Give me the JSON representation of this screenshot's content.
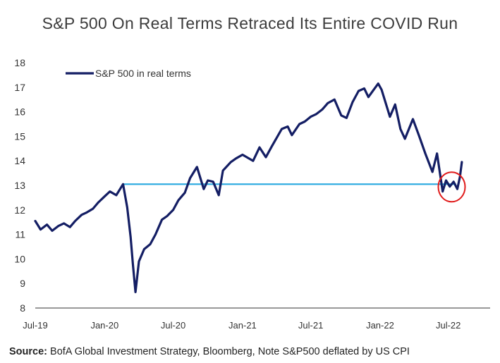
{
  "chart_data": {
    "type": "line",
    "title": "S&P 500 On Real Terms Retraced Its Entire COVID Run",
    "xlabel": "",
    "ylabel": "",
    "ylim": [
      8,
      18
    ],
    "yticks": [
      "8",
      "9",
      "10",
      "11",
      "12",
      "13",
      "14",
      "15",
      "16",
      "17",
      "18"
    ],
    "xticks": [
      "Jul-19",
      "Jan-20",
      "Jul-20",
      "Jan-21",
      "Jul-21",
      "Jan-22",
      "Jul-22"
    ],
    "xrange": [
      "2019-07-01",
      "2022-10-20"
    ],
    "legend": {
      "position": "top-left"
    },
    "grid": false,
    "series": [
      {
        "name": "S&P 500 in real terms",
        "color": "#141e64",
        "points": [
          [
            "2019-07-01",
            11.55
          ],
          [
            "2019-07-15",
            11.2
          ],
          [
            "2019-08-01",
            11.4
          ],
          [
            "2019-08-15",
            11.15
          ],
          [
            "2019-09-01",
            11.35
          ],
          [
            "2019-09-15",
            11.45
          ],
          [
            "2019-10-01",
            11.3
          ],
          [
            "2019-10-15",
            11.55
          ],
          [
            "2019-11-01",
            11.8
          ],
          [
            "2019-11-15",
            11.9
          ],
          [
            "2019-12-01",
            12.05
          ],
          [
            "2019-12-15",
            12.3
          ],
          [
            "2020-01-01",
            12.55
          ],
          [
            "2020-01-15",
            12.75
          ],
          [
            "2020-02-01",
            12.6
          ],
          [
            "2020-02-19",
            13.05
          ],
          [
            "2020-03-01",
            12.1
          ],
          [
            "2020-03-10",
            10.9
          ],
          [
            "2020-03-16",
            9.8
          ],
          [
            "2020-03-23",
            8.65
          ],
          [
            "2020-04-01",
            9.9
          ],
          [
            "2020-04-15",
            10.4
          ],
          [
            "2020-05-01",
            10.6
          ],
          [
            "2020-05-15",
            11.0
          ],
          [
            "2020-06-01",
            11.6
          ],
          [
            "2020-06-15",
            11.75
          ],
          [
            "2020-07-01",
            12.0
          ],
          [
            "2020-07-15",
            12.4
          ],
          [
            "2020-08-01",
            12.7
          ],
          [
            "2020-08-15",
            13.3
          ],
          [
            "2020-09-02",
            13.75
          ],
          [
            "2020-09-20",
            12.85
          ],
          [
            "2020-10-01",
            13.2
          ],
          [
            "2020-10-15",
            13.15
          ],
          [
            "2020-10-30",
            12.6
          ],
          [
            "2020-11-10",
            13.6
          ],
          [
            "2020-12-01",
            13.95
          ],
          [
            "2020-12-15",
            14.1
          ],
          [
            "2021-01-01",
            14.25
          ],
          [
            "2021-01-29",
            14.0
          ],
          [
            "2021-02-15",
            14.55
          ],
          [
            "2021-03-04",
            14.15
          ],
          [
            "2021-03-20",
            14.6
          ],
          [
            "2021-04-15",
            15.3
          ],
          [
            "2021-05-01",
            15.4
          ],
          [
            "2021-05-12",
            15.05
          ],
          [
            "2021-06-01",
            15.5
          ],
          [
            "2021-06-15",
            15.6
          ],
          [
            "2021-07-01",
            15.8
          ],
          [
            "2021-07-15",
            15.9
          ],
          [
            "2021-08-01",
            16.1
          ],
          [
            "2021-08-15",
            16.35
          ],
          [
            "2021-09-02",
            16.5
          ],
          [
            "2021-09-20",
            15.85
          ],
          [
            "2021-10-04",
            15.75
          ],
          [
            "2021-10-20",
            16.4
          ],
          [
            "2021-11-05",
            16.85
          ],
          [
            "2021-11-20",
            16.95
          ],
          [
            "2021-12-01",
            16.6
          ],
          [
            "2021-12-15",
            16.9
          ],
          [
            "2021-12-27",
            17.15
          ],
          [
            "2022-01-05",
            16.9
          ],
          [
            "2022-01-27",
            15.8
          ],
          [
            "2022-02-10",
            16.3
          ],
          [
            "2022-02-24",
            15.3
          ],
          [
            "2022-03-08",
            14.9
          ],
          [
            "2022-03-29",
            15.7
          ],
          [
            "2022-04-15",
            15.0
          ],
          [
            "2022-05-01",
            14.3
          ],
          [
            "2022-05-20",
            13.55
          ],
          [
            "2022-06-01",
            14.3
          ],
          [
            "2022-06-16",
            12.75
          ],
          [
            "2022-06-25",
            13.2
          ],
          [
            "2022-07-05",
            12.95
          ],
          [
            "2022-07-15",
            13.15
          ],
          [
            "2022-07-25",
            12.85
          ],
          [
            "2022-08-01",
            13.35
          ],
          [
            "2022-08-06",
            13.95
          ]
        ]
      },
      {
        "name": "",
        "color": "#29a9e0",
        "points": [
          [
            "2020-02-19",
            13.05
          ],
          [
            "2022-07-20",
            13.05
          ]
        ]
      }
    ],
    "annotations": [
      {
        "type": "circle",
        "x": "2022-07-10",
        "y": 13.05,
        "color": "#e01a1a"
      }
    ]
  },
  "source": {
    "label": "Source:",
    "text": " BofA Global Investment Strategy, Bloomberg, Note S&P500  deflated by US CPI"
  }
}
